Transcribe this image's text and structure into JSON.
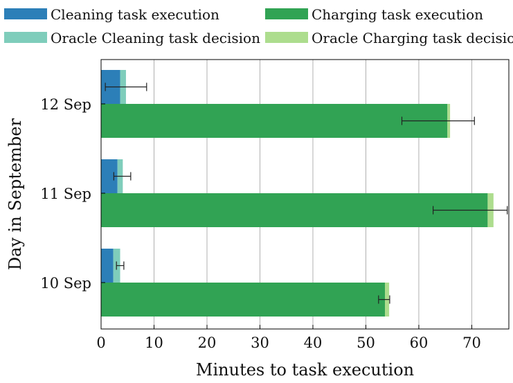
{
  "chart_data": {
    "type": "bar",
    "orientation": "horizontal",
    "stacked": true,
    "xlabel": "Minutes to task execution",
    "ylabel": "Day in September",
    "xlim": [
      0,
      77
    ],
    "xticks": [
      0,
      10,
      20,
      30,
      40,
      50,
      60,
      70
    ],
    "grid": "vertical",
    "legend_position": "top",
    "categories": [
      "12 Sep",
      "11 Sep",
      "10 Sep"
    ],
    "groups": [
      {
        "name": "Cleaning",
        "segments": [
          {
            "name": "Cleaning task execution",
            "color": "#2c7fb8",
            "values": [
              3.6,
              3.1,
              2.3
            ]
          },
          {
            "name": "Oracle Cleaning task decision",
            "color": "#7fcdbb",
            "values": [
              1.1,
              1.0,
              1.3
            ]
          }
        ],
        "error": {
          "center": [
            4.7,
            3.5,
            3.4
          ],
          "low": [
            0.8,
            2.4,
            2.9
          ],
          "high": [
            8.6,
            5.6,
            4.3
          ]
        }
      },
      {
        "name": "Charging",
        "segments": [
          {
            "name": "Charging task execution",
            "color": "#31a354",
            "values": [
              65.4,
              73.0,
              53.6
            ]
          },
          {
            "name": "Oracle Charging task decision",
            "color": "#addd8e",
            "values": [
              0.5,
              1.1,
              0.8
            ]
          }
        ],
        "error": {
          "center": [
            65.4,
            73.0,
            53.6
          ],
          "low": [
            56.8,
            62.7,
            52.4
          ],
          "high": [
            70.5,
            76.7,
            54.5
          ]
        }
      }
    ],
    "legend": [
      {
        "label": "Cleaning task execution",
        "color": "#2c7fb8"
      },
      {
        "label": "Charging task execution",
        "color": "#31a354"
      },
      {
        "label": "Oracle Cleaning task decision",
        "color": "#7fcdbb"
      },
      {
        "label": "Oracle Charging task decision",
        "color": "#addd8e"
      }
    ]
  }
}
